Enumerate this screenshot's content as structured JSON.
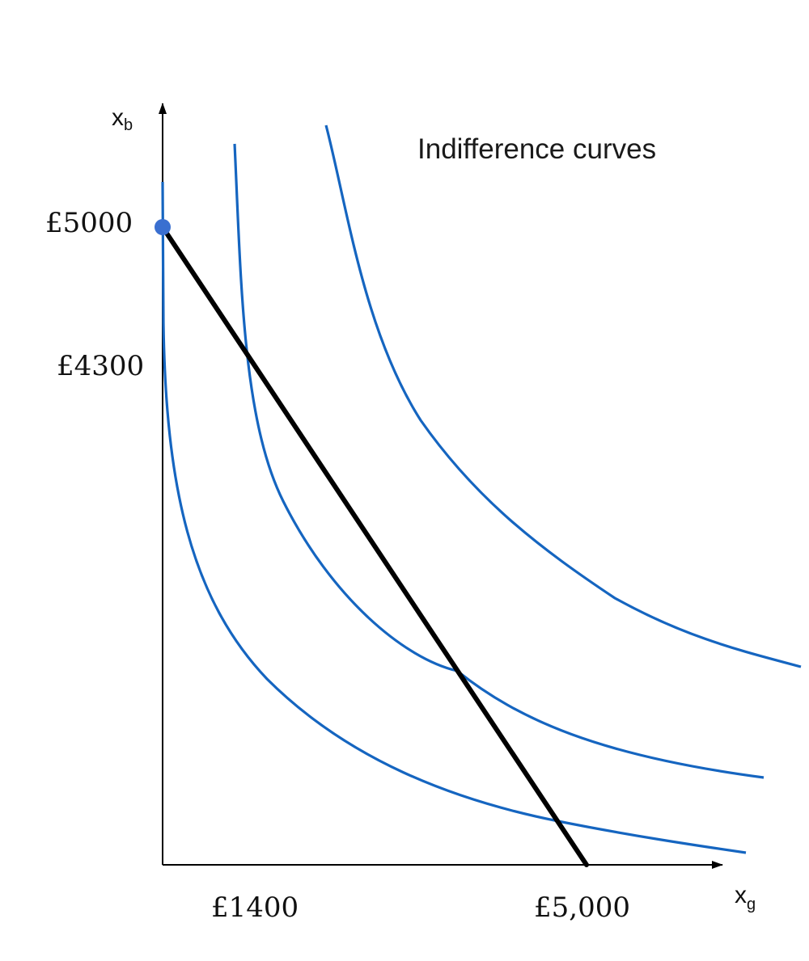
{
  "diagram": {
    "title": "Indifference curves",
    "y_axis_label": {
      "main": "x",
      "sub": "b"
    },
    "x_axis_label": {
      "main": "x",
      "sub": "g"
    },
    "y_ticks": [
      {
        "label": "£5000"
      },
      {
        "label": "£4300"
      }
    ],
    "x_ticks": [
      {
        "label": "£1400"
      },
      {
        "label": "£5,000"
      }
    ],
    "endowment_point": {
      "x": 0,
      "y": 5000,
      "color": "#3a6fd0"
    },
    "budget_line": {
      "from": [
        0,
        5000
      ],
      "to": [
        5000,
        0
      ],
      "color": "#000000"
    },
    "indifference_curves": {
      "count": 3,
      "color": "#1565c0"
    }
  }
}
